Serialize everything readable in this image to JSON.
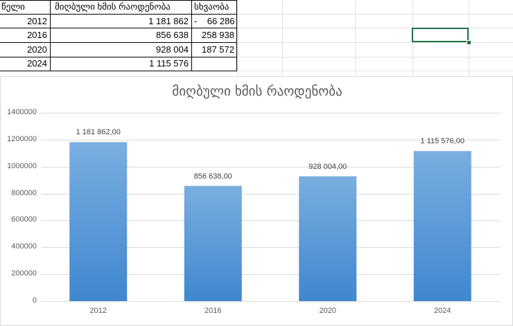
{
  "table": {
    "headers": [
      "წელი",
      "მიღბული ხმის რაოდენობა",
      "სხვაობა"
    ],
    "rows": [
      {
        "year": "2012",
        "votes": "1 181 862",
        "diff": "-    66 286"
      },
      {
        "year": "2016",
        "votes": "856 638",
        "diff": "258 938"
      },
      {
        "year": "2020",
        "votes": "928 004",
        "diff": "187 572"
      },
      {
        "year": "2024",
        "votes": "1 115 576",
        "diff": ""
      }
    ]
  },
  "chart_data": {
    "type": "bar",
    "title": "მიღბული ხმის რაოდენობა",
    "categories": [
      "2012",
      "2016",
      "2020",
      "2024"
    ],
    "values": [
      1181862,
      856638,
      928004,
      1115576
    ],
    "data_labels": [
      "1 181 862,00",
      "856 638,00",
      "928 004,00",
      "1 115 576,00"
    ],
    "yticks": [
      "0",
      "200000",
      "400000",
      "600000",
      "800000",
      "1000000",
      "1200000",
      "1400000"
    ],
    "ylim": [
      0,
      1400000
    ],
    "grid": true,
    "legend": "none",
    "bar_color_top": "#7aaee0",
    "bar_color_bottom": "#3f87cf"
  }
}
